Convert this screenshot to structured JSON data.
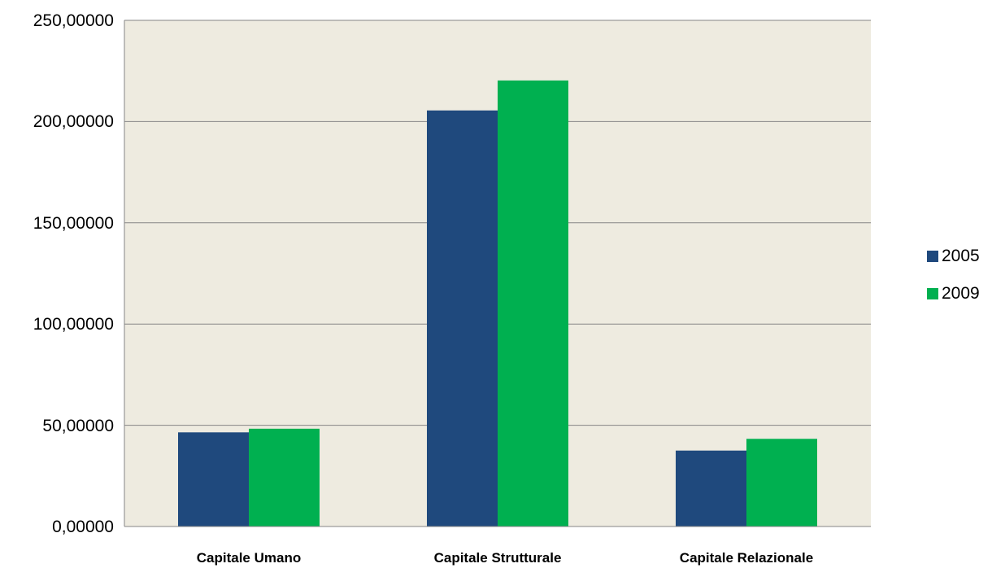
{
  "chart_data": {
    "type": "bar",
    "categories": [
      "Capitale Umano",
      "Capitale Strutturale",
      "Capitale Relazionale"
    ],
    "series": [
      {
        "name": "2005",
        "color": "#1F497D",
        "values": [
          46.5,
          205.5,
          37.5
        ]
      },
      {
        "name": "2009",
        "color": "#00B050",
        "values": [
          48.3,
          220.3,
          43.3
        ]
      }
    ],
    "y_ticks": [
      "0,00000",
      "50,00000",
      "100,00000",
      "150,00000",
      "200,00000",
      "250,00000"
    ],
    "ylim": [
      0,
      250
    ],
    "grid": true,
    "legend": "right",
    "plot_background": "#EEEBE0"
  }
}
